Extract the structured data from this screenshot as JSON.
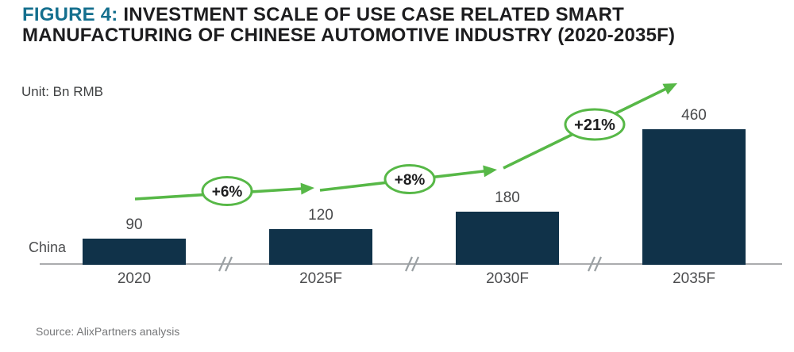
{
  "title": {
    "prefix": "FIGURE 4:",
    "line1_rest": " INVESTMENT SCALE OF USE CASE RELATED SMART",
    "line2": "MANUFACTURING OF CHINESE AUTOMOTIVE INDUSTRY (2020-2035F)"
  },
  "unit_label": "Unit: Bn RMB",
  "row_label": "China",
  "source": "Source: AlixPartners analysis",
  "colors": {
    "bar_navy": "#103249",
    "accent_teal": "#146f8e",
    "arrow_green": "#57b847",
    "axis_gray": "#aaacae",
    "break_gray": "#9aa0a3",
    "annotation_text": "#1d1d1f",
    "label_gray": "#48494b"
  },
  "chart_data": {
    "type": "bar",
    "title": "Investment scale of use case related smart manufacturing of Chinese automotive industry",
    "unit": "Bn RMB",
    "series_label": "China",
    "categories": [
      "2020",
      "2025F",
      "2030F",
      "2035F"
    ],
    "values": [
      90,
      120,
      180,
      460
    ],
    "ylim": [
      0,
      500
    ],
    "grid": false,
    "axis_breaks_between_categories": true,
    "growth_annotations": [
      {
        "label": "+6%",
        "from": "2020",
        "to": "2025F"
      },
      {
        "label": "+8%",
        "from": "2025F",
        "to": "2030F"
      },
      {
        "label": "+21%",
        "from": "2030F",
        "to": "2035F"
      }
    ]
  }
}
